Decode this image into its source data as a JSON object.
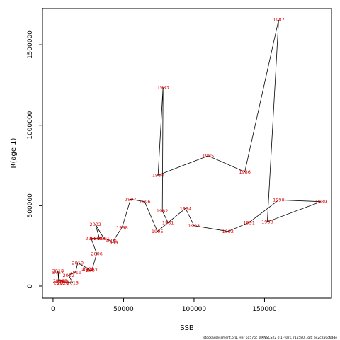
{
  "chart_data": {
    "type": "scatter",
    "connected": true,
    "xlabel": "SSB",
    "ylabel": "R(age 1)",
    "xlim": [
      -7500,
      197500
    ],
    "ylim": [
      -75000,
      1725000
    ],
    "x_ticks": [
      0,
      50000,
      100000,
      150000
    ],
    "y_ticks": [
      0,
      500000,
      1000000,
      1500000
    ],
    "line_color": "#000000",
    "label_color": "#e00000",
    "points": [
      {
        "year": "1981",
        "x": 81500,
        "y": 395000
      },
      {
        "year": "1982",
        "x": 77500,
        "y": 468000
      },
      {
        "year": "1983",
        "x": 78000,
        "y": 1235000
      },
      {
        "year": "1984",
        "x": 74500,
        "y": 690000
      },
      {
        "year": "1985",
        "x": 110000,
        "y": 810000
      },
      {
        "year": "1986",
        "x": 136000,
        "y": 710000
      },
      {
        "year": "1987",
        "x": 160000,
        "y": 1655000
      },
      {
        "year": "1988",
        "x": 152000,
        "y": 400000
      },
      {
        "year": "1989",
        "x": 190000,
        "y": 525000
      },
      {
        "year": "1990",
        "x": 160000,
        "y": 535000
      },
      {
        "year": "1991",
        "x": 139000,
        "y": 395000
      },
      {
        "year": "1992",
        "x": 124000,
        "y": 340000
      },
      {
        "year": "1993",
        "x": 100000,
        "y": 375000
      },
      {
        "year": "1994",
        "x": 94000,
        "y": 483000
      },
      {
        "year": "1995",
        "x": 74000,
        "y": 340000
      },
      {
        "year": "1996",
        "x": 65000,
        "y": 525000
      },
      {
        "year": "1997",
        "x": 55000,
        "y": 540000
      },
      {
        "year": "1998",
        "x": 49000,
        "y": 365000
      },
      {
        "year": "1999",
        "x": 42000,
        "y": 272000
      },
      {
        "year": "2000",
        "x": 41000,
        "y": 282000
      },
      {
        "year": "2001",
        "x": 36000,
        "y": 297000
      },
      {
        "year": "2002",
        "x": 30000,
        "y": 385000
      },
      {
        "year": "2003",
        "x": 33000,
        "y": 295000
      },
      {
        "year": "2004",
        "x": 29000,
        "y": 297000
      },
      {
        "year": "2005",
        "x": 27000,
        "y": 297000
      },
      {
        "year": "2006",
        "x": 31000,
        "y": 202000
      },
      {
        "year": "2007",
        "x": 27500,
        "y": 98000
      },
      {
        "year": "2008",
        "x": 24000,
        "y": 102000
      },
      {
        "year": "2009",
        "x": 25000,
        "y": 107000
      },
      {
        "year": "2010",
        "x": 17500,
        "y": 145000
      },
      {
        "year": "2011",
        "x": 16000,
        "y": 88000
      },
      {
        "year": "2012",
        "x": 11000,
        "y": 67000
      },
      {
        "year": "2013",
        "x": 14000,
        "y": 20000
      },
      {
        "year": "2014",
        "x": 7000,
        "y": 29000
      },
      {
        "year": "2015",
        "x": 6000,
        "y": 32000
      },
      {
        "year": "2016",
        "x": 4000,
        "y": 33000
      },
      {
        "year": "2017",
        "x": 3500,
        "y": 87000
      },
      {
        "year": "2018",
        "x": 3500,
        "y": 96000
      },
      {
        "year": "2019",
        "x": 4500,
        "y": 20000
      },
      {
        "year": "2020",
        "x": 7000,
        "y": 18000
      }
    ]
  },
  "footer": {
    "text": "stockassessment.org,  Her  6a57bc  WKNSCS22  0.1Fvars, r15580 ,  git:  ec2c2a0c6dde"
  }
}
